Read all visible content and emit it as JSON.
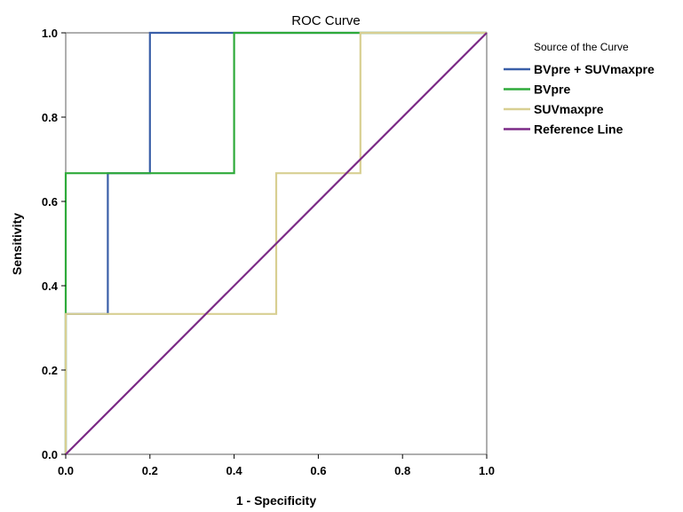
{
  "chart_data": {
    "type": "line",
    "title": "ROC Curve",
    "xlabel": "1 - Specificity",
    "ylabel": "Sensitivity",
    "xlim": [
      0,
      1
    ],
    "ylim": [
      0,
      1
    ],
    "x_ticks": [
      "0.0",
      "0.2",
      "0.4",
      "0.6",
      "0.8",
      "1.0"
    ],
    "y_ticks": [
      "0.0",
      "0.2",
      "0.4",
      "0.6",
      "0.8",
      "1.0"
    ],
    "grid": false,
    "legend": {
      "title": "Source of the Curve",
      "position": "right"
    },
    "series": [
      {
        "name": "BVpre + SUVmaxpre",
        "color": "#3a5fa8",
        "x": [
          0,
          0,
          0.1,
          0.1,
          0.2,
          0.2,
          1.0
        ],
        "y": [
          0,
          0.333,
          0.333,
          0.667,
          0.667,
          1.0,
          1.0
        ]
      },
      {
        "name": "BVpre",
        "color": "#2eaa3a",
        "x": [
          0,
          0,
          0.4,
          0.4,
          1.0
        ],
        "y": [
          0,
          0.667,
          0.667,
          1.0,
          1.0
        ]
      },
      {
        "name": "SUVmaxpre",
        "color": "#d8cf92",
        "x": [
          0,
          0,
          0.5,
          0.5,
          0.7,
          0.7,
          1.0
        ],
        "y": [
          0,
          0.333,
          0.333,
          0.667,
          0.667,
          1.0,
          1.0
        ]
      },
      {
        "name": "Reference Line",
        "color": "#7b2a86",
        "x": [
          0,
          1
        ],
        "y": [
          0,
          1
        ]
      }
    ]
  }
}
